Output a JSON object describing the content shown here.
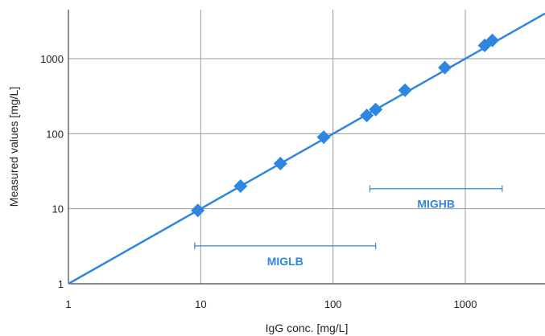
{
  "chart_data": {
    "type": "scatter",
    "scale": "log-log",
    "xlabel": "IgG conc. [mg/L]",
    "ylabel": "Measured values [mg/L]",
    "xlim": [
      1,
      4000
    ],
    "ylim": [
      1,
      4500
    ],
    "xticks": [
      1,
      10,
      100,
      1000
    ],
    "xtick_labels": [
      "1",
      "10",
      "100",
      "1000"
    ],
    "yticks": [
      1,
      10,
      100,
      1000
    ],
    "ytick_labels": [
      "1",
      "10",
      "100",
      "1000"
    ],
    "grid": true,
    "legend": "none",
    "series": [
      {
        "x": [
          9.5,
          20,
          40,
          85,
          180,
          210,
          350,
          700,
          1400,
          1600
        ],
        "y": [
          9.5,
          20,
          40,
          90,
          175,
          210,
          380,
          760,
          1500,
          1750
        ]
      }
    ],
    "fit_line": {
      "slope": 1.0,
      "intercept": 0.0,
      "x_range": [
        1,
        4000
      ]
    },
    "ranges": [
      {
        "label": "MIGLB",
        "x_start": 9,
        "x_end": 210,
        "y": 3.2
      },
      {
        "label": "MIGHB",
        "x_start": 190,
        "x_end": 1900,
        "y": 18.5
      }
    ],
    "colors": {
      "accent": "#2f86e0",
      "grid": "#9a9a9a",
      "axis": "#444444"
    }
  }
}
